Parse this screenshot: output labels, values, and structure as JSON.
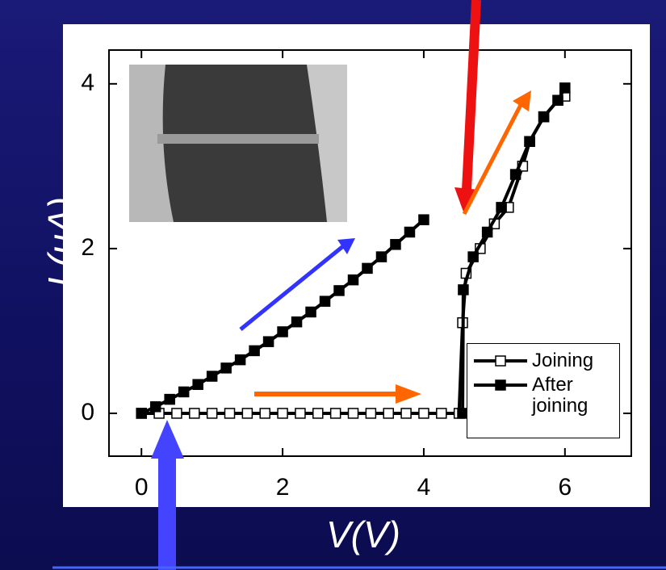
{
  "chart_data": {
    "type": "line",
    "x_label": "V(V)",
    "y_label": "I (uA)",
    "xlim": [
      -0.46,
      6.94
    ],
    "ylim": [
      -0.52,
      4.41
    ],
    "xticks": [
      0,
      2,
      4,
      6
    ],
    "yticks": [
      0,
      2,
      4
    ],
    "legend_position": "lower right",
    "series": [
      {
        "name": "Joining",
        "color": "#000000",
        "marker": "open-square",
        "x": [
          0,
          0.25,
          0.5,
          0.75,
          1,
          1.25,
          1.5,
          1.75,
          2,
          2.25,
          2.5,
          2.75,
          3,
          3.25,
          3.5,
          3.75,
          4,
          4.25,
          4.5,
          4.55,
          4.6,
          4.8,
          5,
          5.2,
          5.4,
          5.5,
          5.7,
          5.9,
          6
        ],
        "values": [
          0,
          0,
          0,
          0,
          0,
          0,
          0,
          0,
          0,
          0,
          0,
          0,
          0,
          0,
          0,
          0,
          0,
          0,
          0,
          1.1,
          1.7,
          2.0,
          2.3,
          2.5,
          3.0,
          3.3,
          3.6,
          3.8,
          3.85
        ]
      },
      {
        "name": "After joining",
        "color": "#000000",
        "marker": "filled-square",
        "x": [
          0,
          0.2,
          0.4,
          0.6,
          0.8,
          1,
          1.2,
          1.4,
          1.6,
          1.8,
          2,
          2.2,
          2.4,
          2.6,
          2.8,
          3,
          3.2,
          3.4,
          3.6,
          3.8,
          4,
          4.3,
          4.55,
          4.56,
          4.7,
          4.9,
          5.1,
          5.3,
          5.5,
          5.7,
          5.9,
          6
        ],
        "values": [
          0,
          0.08,
          0.17,
          0.26,
          0.35,
          0.45,
          0.55,
          0.65,
          0.76,
          0.87,
          0.99,
          1.11,
          1.23,
          1.36,
          1.49,
          1.62,
          1.76,
          1.9,
          2.05,
          2.2,
          2.35,
          null,
          0,
          1.5,
          1.9,
          2.2,
          2.5,
          2.9,
          3.3,
          3.6,
          3.8,
          3.95
        ]
      }
    ]
  }
}
